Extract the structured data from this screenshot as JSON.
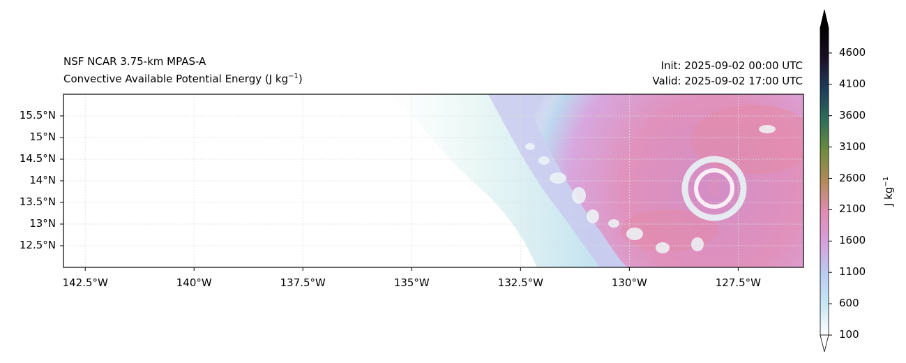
{
  "title": {
    "model": "NSF NCAR 3.75-km MPAS-A",
    "field": "Convective Available Potential Energy (J kg",
    "field_sup": "−1",
    "field_close": ")",
    "init": "Init: 2025-09-02 00:00 UTC",
    "valid": "Valid: 2025-09-02 17:00 UTC"
  },
  "axes": {
    "lat_labels": [
      "15.5°N",
      "15°N",
      "14.5°N",
      "14°N",
      "13.5°N",
      "13°N",
      "12.5°N"
    ],
    "lat_values": [
      15.5,
      15.0,
      14.5,
      14.0,
      13.5,
      13.0,
      12.5
    ],
    "lon_labels": [
      "142.5°W",
      "140°W",
      "137.5°W",
      "135°W",
      "132.5°W",
      "130°W",
      "127.5°W"
    ],
    "lon_values": [
      -142.5,
      -140.0,
      -137.5,
      -135.0,
      -132.5,
      -130.0,
      -127.5
    ],
    "lon_range": [
      -143.0,
      -126.0
    ],
    "lat_range": [
      12.0,
      16.0
    ]
  },
  "colorbar": {
    "unit": "J kg",
    "unit_sup": "−1",
    "tick_labels": [
      "4600",
      "4100",
      "3600",
      "3100",
      "2600",
      "2100",
      "1600",
      "1100",
      "600",
      "100"
    ],
    "tick_values": [
      4600,
      4100,
      3600,
      3100,
      2600,
      2100,
      1600,
      1100,
      600,
      100
    ],
    "range": [
      100,
      5000
    ],
    "stops": [
      "#ffffff",
      "#c8e6f5",
      "#b9cdef",
      "#d7a0dc",
      "#e08cb4",
      "#b48a5a",
      "#6e8c3c",
      "#2f6e5a",
      "#1e3c5a",
      "#1a1028",
      "#000000"
    ]
  },
  "chart_data": {
    "type": "heatmap",
    "title": "NSF NCAR 3.75-km MPAS-A — Convective Available Potential Energy (J kg−1)",
    "variable": "CAPE",
    "units": "J kg−1",
    "xlim": [
      -143.0,
      -126.0
    ],
    "ylim": [
      12.0,
      16.0
    ],
    "features": [
      {
        "name": "tropical cyclone eye",
        "lon": -128.0,
        "lat": 13.85
      },
      {
        "name": "high CAPE region",
        "lon_range": [
          -131.5,
          -126.0
        ],
        "lat_range": [
          12.2,
          16.0
        ],
        "value_range": [
          1600,
          2300
        ]
      },
      {
        "name": "low CAPE region",
        "lon_range": [
          -143.0,
          -135.5
        ],
        "lat_range": [
          12.0,
          16.0
        ],
        "value_range": [
          100,
          300
        ]
      }
    ]
  }
}
